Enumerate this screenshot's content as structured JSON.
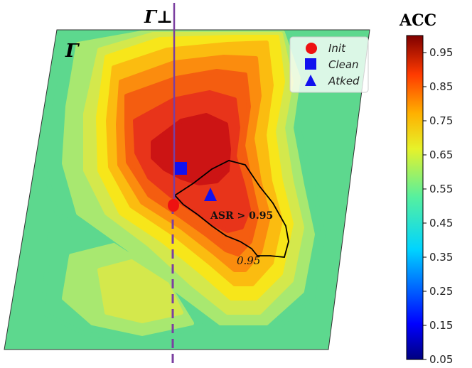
{
  "chart_data": {
    "type": "heatmap",
    "colorbar": {
      "title": "ACC",
      "ticks": [
        "0.95",
        "0.85",
        "0.75",
        "0.65",
        "0.55",
        "0.45",
        "0.35",
        "0.25",
        "0.15",
        "0.05"
      ],
      "range": [
        0.05,
        1.0
      ],
      "colormap": "jet"
    },
    "plane_label": "Γ",
    "perp_label": "Γ⊥",
    "legend": {
      "placement": "top-right",
      "entries": [
        {
          "label": "Init",
          "marker": "circle",
          "color": "#ee1111"
        },
        {
          "label": "Clean",
          "marker": "square",
          "color": "#1111ee"
        },
        {
          "label": "Atked",
          "marker": "triangle",
          "color": "#1111ee"
        }
      ]
    },
    "annotations": {
      "region_label": "ASR > 0.95",
      "contour_label": "0.95"
    },
    "levels": [
      {
        "acc": 0.5,
        "color": "#5dd88e"
      },
      {
        "acc": 0.55,
        "color": "#a8e870"
      },
      {
        "acc": 0.6,
        "color": "#d4e84c"
      },
      {
        "acc": 0.65,
        "color": "#f7e61a"
      },
      {
        "acc": 0.7,
        "color": "#fbbc10"
      },
      {
        "acc": 0.75,
        "color": "#fb8c0e"
      },
      {
        "acc": 0.8,
        "color": "#f45d10"
      },
      {
        "acc": 0.85,
        "color": "#e8341a"
      },
      {
        "acc": 0.9,
        "color": "#cc1414"
      }
    ],
    "colors": {
      "perp_line": "#7b3fa0",
      "init": "#ee1111",
      "clean": "#1111ee",
      "atked": "#1111ee"
    }
  }
}
